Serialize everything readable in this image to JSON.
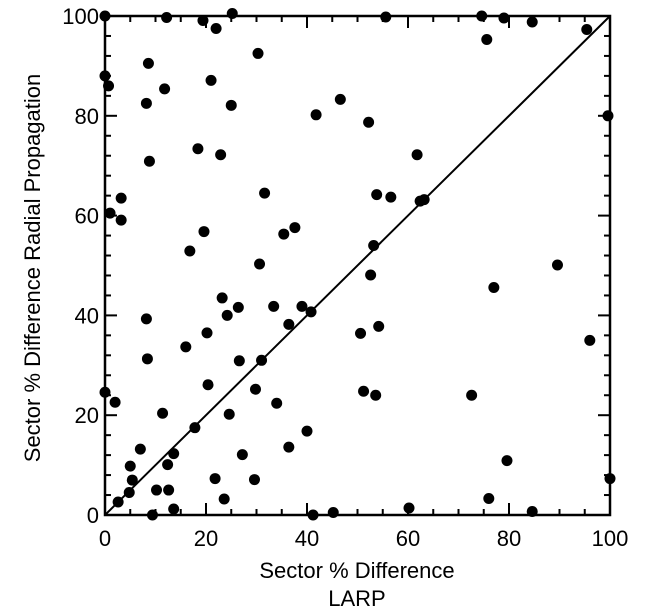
{
  "chart_data": {
    "type": "scatter",
    "title": "",
    "xlabel": "Sector % Difference",
    "xlabel_line2": "LARP",
    "ylabel": "Sector % Difference Radial Propagation",
    "xlim": [
      0,
      100
    ],
    "ylim": [
      0,
      100
    ],
    "xticks": [
      0,
      20,
      40,
      60,
      80,
      100
    ],
    "yticks": [
      0,
      20,
      40,
      60,
      80,
      100
    ],
    "x_minor_step": 5,
    "y_minor_step": 4,
    "grid": false,
    "legend": "none",
    "reference_line": {
      "from": [
        0,
        0
      ],
      "to": [
        100,
        100
      ]
    },
    "marker_color": "#000000",
    "points": [
      [
        0,
        100
      ],
      [
        0,
        88
      ],
      [
        0.7,
        86
      ],
      [
        1,
        60.5
      ],
      [
        0,
        24.6
      ],
      [
        2,
        22.6
      ],
      [
        3.2,
        63.5
      ],
      [
        3.2,
        59.1
      ],
      [
        2.6,
        2.6
      ],
      [
        5,
        9.8
      ],
      [
        5.4,
        7
      ],
      [
        4.8,
        4.5
      ],
      [
        7,
        13.2
      ],
      [
        8.2,
        39.3
      ],
      [
        8.4,
        31.3
      ],
      [
        8.2,
        82.5
      ],
      [
        8.6,
        90.5
      ],
      [
        8.8,
        70.9
      ],
      [
        9.4,
        0
      ],
      [
        10.2,
        5
      ],
      [
        11.4,
        20.4
      ],
      [
        11.8,
        85.4
      ],
      [
        12.2,
        99.7
      ],
      [
        12.4,
        10.1
      ],
      [
        12.6,
        5
      ],
      [
        13.6,
        12.3
      ],
      [
        13.6,
        1.2
      ],
      [
        16,
        33.7
      ],
      [
        16.8,
        52.9
      ],
      [
        17.8,
        17.5
      ],
      [
        18.4,
        73.4
      ],
      [
        19.6,
        56.8
      ],
      [
        19.4,
        99.1
      ],
      [
        20.2,
        36.5
      ],
      [
        20.4,
        26.1
      ],
      [
        21,
        87.1
      ],
      [
        21.8,
        7.3
      ],
      [
        22,
        97.5
      ],
      [
        22.9,
        72.2
      ],
      [
        23.2,
        43.5
      ],
      [
        23.6,
        3.2
      ],
      [
        24.2,
        40
      ],
      [
        24.6,
        20.2
      ],
      [
        25,
        82.1
      ],
      [
        25.2,
        100.5
      ],
      [
        26.4,
        41.6
      ],
      [
        26.6,
        30.9
      ],
      [
        27.2,
        12.1
      ],
      [
        29.6,
        7.1
      ],
      [
        29.8,
        25.2
      ],
      [
        30.3,
        92.5
      ],
      [
        30.6,
        50.3
      ],
      [
        31,
        31
      ],
      [
        31.6,
        64.5
      ],
      [
        33.4,
        41.8
      ],
      [
        34,
        22.4
      ],
      [
        35.4,
        56.3
      ],
      [
        36.4,
        13.6
      ],
      [
        36.4,
        38.2
      ],
      [
        37.6,
        57.6
      ],
      [
        39,
        41.8
      ],
      [
        40,
        16.8
      ],
      [
        40.8,
        40.7
      ],
      [
        41.2,
        0
      ],
      [
        41.8,
        80.2
      ],
      [
        45.2,
        0.5
      ],
      [
        46.6,
        83.3
      ],
      [
        50.6,
        36.4
      ],
      [
        51.2,
        24.8
      ],
      [
        52.2,
        78.7
      ],
      [
        52.6,
        48.1
      ],
      [
        53.2,
        54
      ],
      [
        53.6,
        24
      ],
      [
        53.8,
        64.2
      ],
      [
        54.2,
        37.8
      ],
      [
        55.6,
        99.8
      ],
      [
        56.6,
        63.7
      ],
      [
        60.2,
        1.4
      ],
      [
        61.8,
        72.2
      ],
      [
        62.4,
        62.9
      ],
      [
        63.2,
        63.2
      ],
      [
        72.6,
        24
      ],
      [
        74.6,
        100
      ],
      [
        75.6,
        95.3
      ],
      [
        76,
        3.3
      ],
      [
        77,
        45.6
      ],
      [
        79,
        99.6
      ],
      [
        79.6,
        10.9
      ],
      [
        84.6,
        98.8
      ],
      [
        84.6,
        0.7
      ],
      [
        89.6,
        50.1
      ],
      [
        95.4,
        97.3
      ],
      [
        96,
        35
      ],
      [
        99.6,
        80
      ],
      [
        100,
        7.3
      ]
    ]
  }
}
